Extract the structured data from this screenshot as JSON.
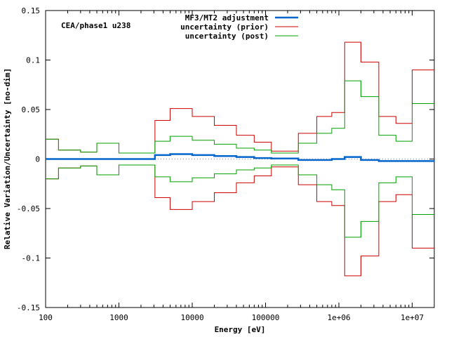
{
  "chart_data": {
    "type": "line",
    "title": "",
    "annotation": "CEA/phase1 u238",
    "xlabel": "Energy [eV]",
    "ylabel": "Relative Variation/Uncertainty [no-dim]",
    "x_scale": "log",
    "xlim": [
      100,
      20000000
    ],
    "ylim": [
      -0.15,
      0.15
    ],
    "x_ticks": [
      100,
      1000,
      10000,
      100000,
      1000000,
      10000000
    ],
    "x_tick_labels": [
      "100",
      "1000",
      "10000",
      "100000",
      "1e+06",
      "1e+07"
    ],
    "y_ticks": [
      -0.15,
      -0.1,
      -0.05,
      0,
      0.05,
      0.1,
      0.15
    ],
    "y_tick_labels": [
      "-0.15",
      "-0.1",
      "-0.05",
      "0",
      "0.05",
      "0.1",
      "0.15"
    ],
    "zero_line": true,
    "legend_position": "top-center",
    "bin_edges": [
      100,
      150,
      300,
      500,
      1000,
      3100,
      5000,
      10000,
      20000,
      40000,
      70000,
      120000,
      280000,
      500000,
      800000,
      1200000,
      2000000,
      3500000,
      6000000,
      10000000,
      20000000
    ],
    "series": [
      {
        "name": "MF3/MT2 adjustment",
        "color": "#0066cc",
        "values": [
          0,
          0,
          0,
          0,
          0,
          0.004,
          0.005,
          0.004,
          0.003,
          0.002,
          0.001,
          0.0005,
          -0.001,
          -0.001,
          0,
          0.002,
          -0.001,
          -0.002,
          -0.002,
          -0.002
        ]
      },
      {
        "name": "uncertainty (prior)",
        "color": "#cc0000",
        "mirror": true,
        "values": [
          0.02,
          0.009,
          0.007,
          0.016,
          0.006,
          0.039,
          0.051,
          0.043,
          0.034,
          0.024,
          0.017,
          0.008,
          0.026,
          0.043,
          0.047,
          0.118,
          0.098,
          0.043,
          0.036,
          0.09
        ]
      },
      {
        "name": "uncertainty (post)",
        "color": "#00a000",
        "mirror": true,
        "values": [
          0.02,
          0.009,
          0.007,
          0.016,
          0.006,
          0.018,
          0.023,
          0.019,
          0.015,
          0.011,
          0.009,
          0.006,
          0.016,
          0.026,
          0.031,
          0.079,
          0.063,
          0.024,
          0.018,
          0.056
        ]
      }
    ]
  }
}
